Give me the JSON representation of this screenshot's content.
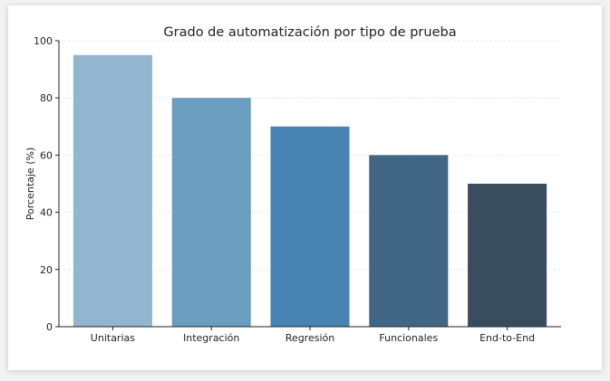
{
  "chart_data": {
    "type": "bar",
    "title": "Grado de automatización por tipo de prueba",
    "xlabel": "",
    "ylabel": "Porcentaje (%)",
    "categories": [
      "Unitarias",
      "Integración",
      "Regresión",
      "Funcionales",
      "End-to-End"
    ],
    "values": [
      95,
      80,
      70,
      60,
      50
    ],
    "colors": [
      "#92b5d0",
      "#6b9dbf",
      "#4784b3",
      "#426784",
      "#3a4d5e"
    ],
    "ylim": [
      0,
      100
    ],
    "yticks": [
      0,
      20,
      40,
      60,
      80,
      100
    ],
    "grid": true,
    "legend": "none"
  }
}
